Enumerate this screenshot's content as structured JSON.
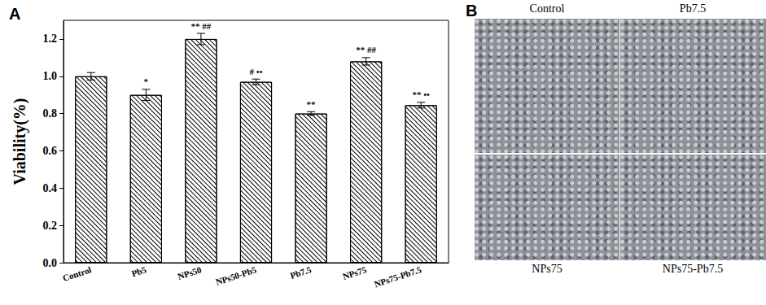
{
  "chart_data": {
    "type": "bar",
    "title": "A",
    "categories": [
      "Control",
      "Pb5",
      "NPs50",
      "NPs50-Pb5",
      "Pb7.5",
      "NPs75",
      "NPs75-Pb7.5"
    ],
    "values": [
      1.0,
      0.9,
      1.2,
      0.97,
      0.8,
      1.08,
      0.845
    ],
    "errors": [
      0.02,
      0.03,
      0.03,
      0.015,
      0.01,
      0.02,
      0.015
    ],
    "annotations": [
      null,
      "*",
      "** ##",
      "# ••",
      "**",
      "** ##",
      "** ••"
    ],
    "y_label": "Viability(%)",
    "color": "#000000",
    "ylim": [
      0,
      1.3
    ],
    "yticks": [
      {
        "value": 0,
        "label": "0.0"
      },
      {
        "value": 0.2,
        "label": "0.2"
      },
      {
        "value": 0.4,
        "label": "0.4"
      },
      {
        "value": 0.6,
        "label": "0.6"
      },
      {
        "value": 0.8,
        "label": "0.8"
      },
      {
        "value": 1.0,
        "label": "1.0"
      },
      {
        "value": 1.2,
        "label": "1.2"
      }
    ],
    "grid": false
  },
  "image_panel": {
    "label": "B",
    "images": [
      "Control",
      "Pb7.5",
      "NPs75",
      "NPs75-Pb7.5"
    ]
  }
}
